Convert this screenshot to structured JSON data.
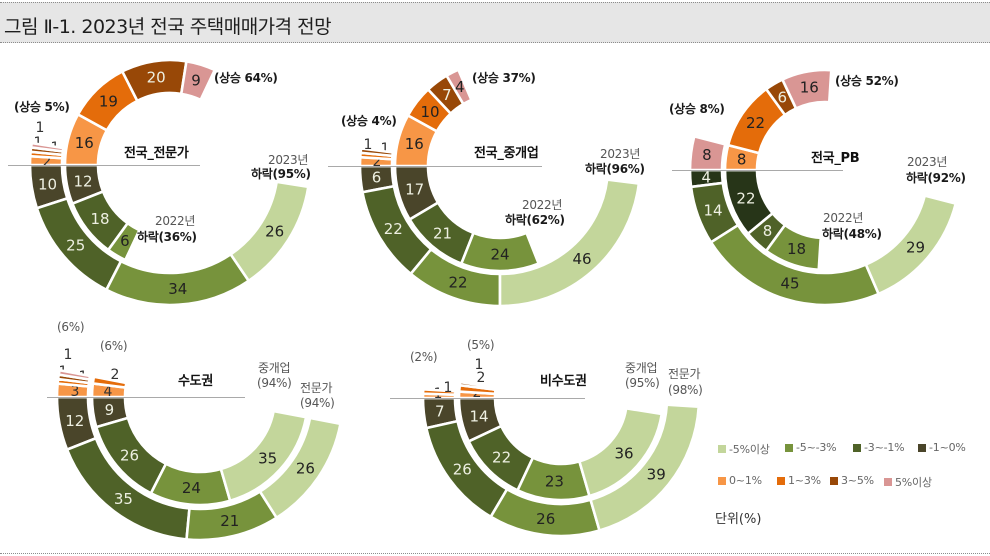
{
  "header": {
    "title": "그림 Ⅱ-1. 2023년 전국 주택매매가격 전망"
  },
  "chart_data": {
    "type": "donut",
    "title": "그림 Ⅱ-1. 2023년 전국 주택매매가격 전망",
    "unit": "단위(%)",
    "categories": [
      "-5%이상",
      "-5~-3%",
      "-3~-1%",
      "-1~0%",
      "0~1%",
      "1~3%",
      "3~5%",
      "5%이상"
    ],
    "falling_order": [
      "-1~0%",
      "-3~-1%",
      "-5~-3%",
      "-5%이상"
    ],
    "rising_order": [
      "0~1%",
      "1~3%",
      "3~5%",
      "5%이상"
    ],
    "colors": {
      "-5%이상": "#c3d69b",
      "-5~-3%": "#77933c",
      "-3~-1%": "#4f6228",
      "-1~0%": "#4a452a",
      "0~1%": "#f79646",
      "1~3%": "#e46c0a",
      "3~5%": "#984807",
      "5%이상": "#d99694"
    },
    "legend_position": "bottom-right",
    "charts": [
      {
        "name": "전국_전문가",
        "rings": [
          {
            "series": "2023년",
            "falling": [
              10,
              25,
              34,
              26
            ],
            "rising": [
              2,
              1,
              1,
              1
            ],
            "fall_label": "하락(95%)",
            "rise_label": "(상승 5%)"
          },
          {
            "series": "2022년",
            "falling": [
              12,
              18,
              6,
              0
            ],
            "rising": [
              16,
              19,
              20,
              9
            ],
            "fall_label": "하락(36%)",
            "rise_label": "(상승 64%)"
          }
        ]
      },
      {
        "name": "전국_중개업",
        "rings": [
          {
            "series": "2023년",
            "falling": [
              6,
              22,
              22,
              46
            ],
            "rising": [
              2,
              1,
              1,
              0
            ],
            "fall_label": "하락(96%)",
            "rise_label": "(상승 4%)"
          },
          {
            "series": "2022년",
            "falling": [
              17,
              21,
              24,
              0
            ],
            "rising": [
              16,
              10,
              7,
              4
            ],
            "fall_label": "하락(62%)",
            "rise_label": "(상승 37%)"
          }
        ]
      },
      {
        "name": "전국_PB",
        "color_overrides": {
          "-1~0%": "#273518"
        },
        "rings": [
          {
            "series": "2023년",
            "falling": [
              4,
              14,
              45,
              29
            ],
            "rising": [
              0,
              0,
              0,
              8
            ],
            "fall_label": "하락(92%)",
            "rise_label": "(상승 8%)"
          },
          {
            "series": "2022년",
            "falling": [
              22,
              8,
              18,
              0
            ],
            "rising": [
              8,
              22,
              6,
              16
            ],
            "fall_label": "하락(48%)",
            "rise_label": "(상승 52%)"
          }
        ]
      },
      {
        "name": "수도권",
        "rings": [
          {
            "series": "전문가",
            "falling": [
              12,
              35,
              21,
              26
            ],
            "rising": [
              3,
              1,
              1,
              1
            ],
            "fall_label": "(94%)",
            "rise_label": "(6%)"
          },
          {
            "series": "중개업",
            "falling": [
              9,
              26,
              24,
              35
            ],
            "rising": [
              4,
              2,
              0,
              0
            ],
            "fall_label": "(94%)",
            "rise_label": "(6%)"
          }
        ]
      },
      {
        "name": "비수도권",
        "rings": [
          {
            "series": "전문가",
            "falling": [
              7,
              26,
              26,
              39
            ],
            "rising": [
              1,
              1,
              0,
              0
            ],
            "fall_label": "(98%)",
            "rise_label": "(2%)"
          },
          {
            "series": "중개업",
            "falling": [
              14,
              22,
              23,
              36
            ],
            "rising": [
              2,
              2,
              1,
              0
            ],
            "fall_label": "(95%)",
            "rise_label": "(5%)"
          }
        ]
      }
    ]
  }
}
